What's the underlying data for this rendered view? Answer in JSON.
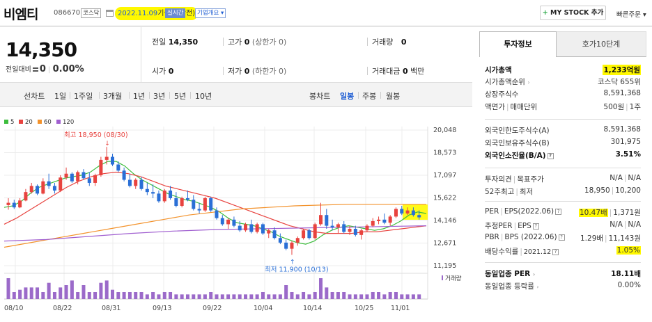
{
  "header": {
    "company": "비엠티",
    "code": "086670",
    "market_badge": "코스닥",
    "date": "2022.11.09",
    "date_suffix": "기준(개장전)",
    "realtime_label": "실시간",
    "company_info_label": "기업개요 ▾",
    "mystock_plus": "+",
    "mystock_label": "MY STOCK 추가",
    "quick_order_label": "빠른주문 ▾"
  },
  "price": {
    "current": "14,350",
    "diff_label": "전일대비",
    "diff_value": "0",
    "diff_pct": "0.00%"
  },
  "quotes": {
    "prev_label": "전일",
    "prev_value": "14,350",
    "high_label": "고가",
    "high_value": "0",
    "high_sub": "(상한가 0)",
    "volume_label": "거래량",
    "volume_value": "0",
    "open_label": "시가",
    "open_value": "0",
    "low_label": "저가",
    "low_value": "0",
    "low_sub": "(하한가 0)",
    "amount_label": "거래대금",
    "amount_value": "0",
    "amount_unit": "백만"
  },
  "periods": {
    "line_chart": "선차트",
    "items": [
      "1일",
      "1주일",
      "3개월",
      "1년",
      "3년",
      "5년",
      "10년"
    ],
    "candle_chart": "봉차트",
    "candle_items": [
      "일봉",
      "주봉",
      "월봉"
    ],
    "active_candle": "일봉"
  },
  "chart_data": {
    "type": "candlestick",
    "legend": [
      {
        "name": "5",
        "color": "#3dbd3d"
      },
      {
        "name": "20",
        "color": "#e8433f"
      },
      {
        "name": "60",
        "color": "#f3922b"
      },
      {
        "name": "120",
        "color": "#a05fd0"
      }
    ],
    "y_ticks": [
      "20,048",
      "18,573",
      "17,097",
      "15,622",
      "14,146",
      "12,671",
      "11,195"
    ],
    "ylim": [
      11195,
      20048
    ],
    "x_ticks": [
      "08/10",
      "08/22",
      "08/31",
      "09/13",
      "09/22",
      "10/04",
      "10/14",
      "10/25",
      "11/01"
    ],
    "high_annotation": "최고 18,950 (08/30)",
    "low_annotation": "최저 11,900 (10/13)",
    "volume_label": "거래량",
    "up_color": "#e8433f",
    "down_color": "#2a6fd6",
    "candles": [
      [
        15150,
        15600,
        14850,
        15300
      ],
      [
        15300,
        15500,
        14900,
        15000
      ],
      [
        15000,
        15600,
        14950,
        15450
      ],
      [
        15450,
        16200,
        15400,
        16000
      ],
      [
        16000,
        16600,
        15900,
        16400
      ],
      [
        16400,
        16500,
        15800,
        15900
      ],
      [
        15900,
        16900,
        15850,
        16700
      ],
      [
        16700,
        17200,
        16200,
        16400
      ],
      [
        16400,
        16600,
        15900,
        16100
      ],
      [
        16100,
        17100,
        16000,
        16950
      ],
      [
        16950,
        17600,
        16800,
        17200
      ],
      [
        17200,
        17300,
        16600,
        16700
      ],
      [
        16700,
        17400,
        16500,
        17300
      ],
      [
        17300,
        17500,
        16800,
        16900
      ],
      [
        16900,
        17300,
        16400,
        16600
      ],
      [
        16600,
        17200,
        16400,
        17100
      ],
      [
        17100,
        18300,
        17000,
        18100
      ],
      [
        18100,
        18950,
        17800,
        18300
      ],
      [
        18300,
        18500,
        17700,
        17800
      ],
      [
        17800,
        18000,
        17300,
        17400
      ],
      [
        17400,
        17600,
        16700,
        16800
      ],
      [
        16800,
        17200,
        16300,
        16400
      ],
      [
        16400,
        16900,
        16200,
        16800
      ],
      [
        16800,
        17000,
        16100,
        16200
      ],
      [
        16200,
        16600,
        15800,
        16000
      ],
      [
        16000,
        16500,
        15600,
        15900
      ],
      [
        15900,
        16100,
        15300,
        15400
      ],
      [
        15400,
        16200,
        15300,
        16100
      ],
      [
        16100,
        16400,
        15500,
        15600
      ],
      [
        15600,
        16000,
        15000,
        15100
      ],
      [
        15100,
        15700,
        15000,
        15600
      ],
      [
        15600,
        16100,
        15400,
        15500
      ],
      [
        15500,
        15800,
        14800,
        14900
      ],
      [
        14900,
        15300,
        14600,
        14800
      ],
      [
        14800,
        15700,
        14700,
        15600
      ],
      [
        15600,
        15700,
        14700,
        14800
      ],
      [
        14800,
        15000,
        14200,
        14300
      ],
      [
        14300,
        14500,
        13800,
        13900
      ],
      [
        13900,
        14300,
        13600,
        14200
      ],
      [
        14200,
        14400,
        13700,
        13800
      ],
      [
        13800,
        14100,
        13400,
        13500
      ],
      [
        13500,
        14000,
        13400,
        13900
      ],
      [
        13900,
        14200,
        13300,
        13400
      ],
      [
        13400,
        14000,
        13300,
        13900
      ],
      [
        13900,
        14000,
        13200,
        13300
      ],
      [
        13300,
        13600,
        13000,
        13500
      ],
      [
        13500,
        13700,
        12900,
        13000
      ],
      [
        13000,
        13300,
        12600,
        12700
      ],
      [
        12700,
        12900,
        12200,
        12300
      ],
      [
        12300,
        12800,
        11900,
        12700
      ],
      [
        12700,
        13100,
        12500,
        13000
      ],
      [
        13000,
        13600,
        12900,
        13500
      ],
      [
        13500,
        13600,
        12900,
        13000
      ],
      [
        13000,
        14000,
        12900,
        13900
      ],
      [
        13900,
        15300,
        13800,
        14500
      ],
      [
        14500,
        14900,
        13600,
        13800
      ],
      [
        13800,
        14200,
        13500,
        13700
      ],
      [
        13700,
        14000,
        13300,
        13900
      ],
      [
        13900,
        14100,
        13300,
        13400
      ],
      [
        13400,
        13800,
        13200,
        13600
      ],
      [
        13600,
        13800,
        13100,
        13200
      ],
      [
        13200,
        13600,
        12900,
        13500
      ],
      [
        13500,
        13900,
        13400,
        13800
      ],
      [
        13800,
        14300,
        13700,
        14100
      ],
      [
        14100,
        14400,
        13900,
        14200
      ],
      [
        14200,
        14600,
        13900,
        14000
      ],
      [
        14000,
        14500,
        13800,
        14400
      ],
      [
        14400,
        15000,
        14300,
        14900
      ],
      [
        14900,
        15100,
        14500,
        14600
      ],
      [
        14600,
        15000,
        14500,
        14800
      ],
      [
        14800,
        15000,
        14400,
        14500
      ],
      [
        14500,
        14800,
        14200,
        14350
      ]
    ],
    "ma_series": [
      {
        "period": 5,
        "start": 15000,
        "points": [
          15100,
          15400,
          15900,
          16300,
          16500,
          16700,
          16900,
          17000,
          17100,
          17300,
          17700,
          18000,
          18000,
          17700,
          17200,
          16800,
          16500,
          16200,
          15900,
          15700,
          15500,
          15400,
          15200,
          15000,
          14700,
          14300,
          14000,
          13900,
          13800,
          13600,
          13400,
          13100,
          12900,
          12700,
          12600,
          12800,
          13200,
          13500,
          13700,
          13800,
          13700,
          13600,
          13500,
          13600,
          13800,
          14100,
          14500,
          14700,
          14600
        ]
      },
      {
        "period": 20,
        "start": 13900,
        "points": [
          14300,
          14800,
          15300,
          15800,
          16300,
          16700,
          17000,
          17200,
          17300,
          17200,
          17000,
          16700,
          16400,
          16200,
          16000,
          15800,
          15600,
          15300,
          15000,
          14700,
          14400,
          14100,
          13800,
          13600,
          13400,
          13300,
          13300,
          13300,
          13400,
          13400,
          13500,
          13600,
          13700,
          13800
        ]
      },
      {
        "period": 60,
        "start": 12400,
        "points": [
          12700,
          13000,
          13300,
          13600,
          13900,
          14200,
          14500,
          14700,
          14900,
          15000,
          15100,
          15150,
          15200,
          15200,
          15200,
          15200
        ]
      },
      {
        "period": 120,
        "start": 12800,
        "points": [
          12900,
          13100,
          13300,
          13450,
          13550,
          13600,
          13650,
          13700,
          13750,
          13800
        ]
      }
    ],
    "volume": [
      9,
      3,
      4,
      5,
      5,
      5,
      3,
      7,
      3,
      5,
      6,
      8,
      3,
      6,
      3,
      3,
      7,
      8,
      4,
      3,
      3,
      3,
      3,
      3,
      2,
      3,
      2,
      3,
      3,
      2,
      2,
      2,
      2,
      2,
      2,
      3,
      2,
      2,
      2,
      2,
      2,
      2,
      2,
      2,
      3,
      2,
      2,
      2,
      6,
      3,
      2,
      3,
      2,
      3,
      9,
      5,
      3,
      3,
      3,
      2,
      2,
      2,
      2,
      3,
      3,
      2,
      3,
      3,
      2,
      2,
      2,
      2
    ]
  },
  "panel": {
    "tab_invest": "투자정보",
    "tab_hoga": "호가10단계",
    "market_cap_label": "시가총액",
    "market_cap_value": "1,233억원",
    "market_cap_rank_label": "시가총액순위",
    "market_cap_rank_value": "코스닥 655위",
    "listed_shares_label": "상장주식수",
    "listed_shares_value": "8,591,368",
    "par_label": "액면가",
    "trade_unit_label": "매매단위",
    "par_value": "500원",
    "trade_unit_value": "1주",
    "foreign_limit_label": "외국인한도주식수(A)",
    "foreign_limit_value": "8,591,368",
    "foreign_hold_label": "외국인보유주식수(B)",
    "foreign_hold_value": "301,975",
    "foreign_ratio_label": "외국인소진율(B/A)",
    "foreign_ratio_value": "3.51%",
    "opinion_label": "투자의견",
    "target_label": "목표주가",
    "opinion_value": "N/A",
    "target_value": "N/A",
    "week52_label": "52주최고",
    "week52_low_label": "최저",
    "week52_high": "18,950",
    "week52_low": "10,200",
    "per_label": "PER",
    "eps_label": "EPS(2022.06)",
    "per_value": "10.47배",
    "eps_value": "1,371원",
    "est_per_label": "추정PER",
    "est_eps_label": "EPS",
    "est_per_value": "N/A",
    "est_eps_value": "N/A",
    "pbr_label": "PBR",
    "bps_label": "BPS (2022.06)",
    "pbr_value": "1.29배",
    "bps_value": "11,143원",
    "div_label": "배당수익률",
    "div_date": "2021.12",
    "div_value": "1.05%",
    "sector_per_label": "동일업종 PER",
    "sector_per_value": "18.11배",
    "sector_change_label": "동일업종 등락률",
    "sector_change_value": "0.00%"
  }
}
